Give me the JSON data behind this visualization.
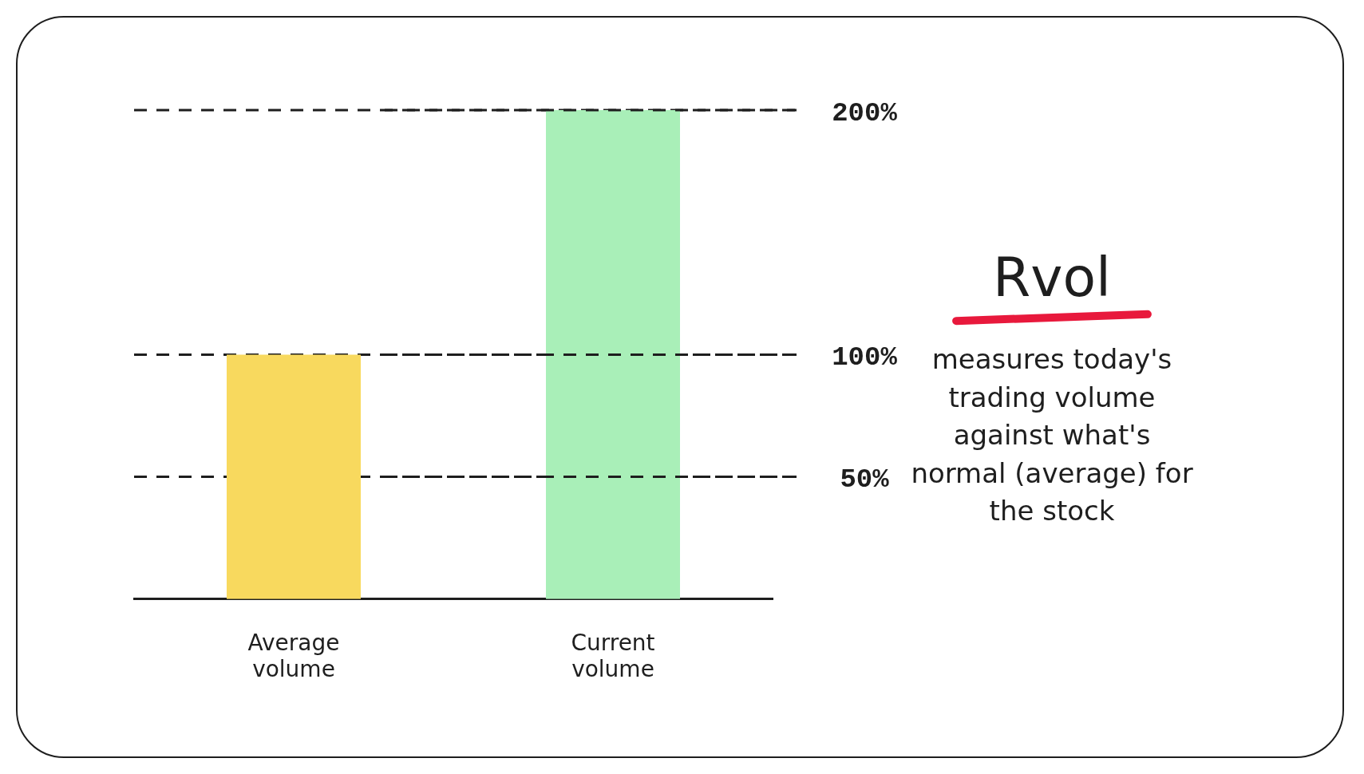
{
  "chart_data": {
    "type": "bar",
    "title": "Rvol",
    "subtitle": "measures today's trading volume against what's normal (average) for the stock",
    "categories": [
      "Average volume",
      "Current volume"
    ],
    "values": [
      100,
      200
    ],
    "colors": [
      "#f8d95e",
      "#a9efb8"
    ],
    "ylim": [
      0,
      200
    ],
    "ref_lines": [
      {
        "axis": "y",
        "value": 200,
        "label": "200%",
        "line_style": "dashed"
      },
      {
        "axis": "y",
        "value": 100,
        "label": "100%",
        "line_style": "dashed"
      },
      {
        "axis": "y",
        "value": 50,
        "label": "50%",
        "line_style": "dashed"
      }
    ],
    "grid": false,
    "legend": false
  }
}
